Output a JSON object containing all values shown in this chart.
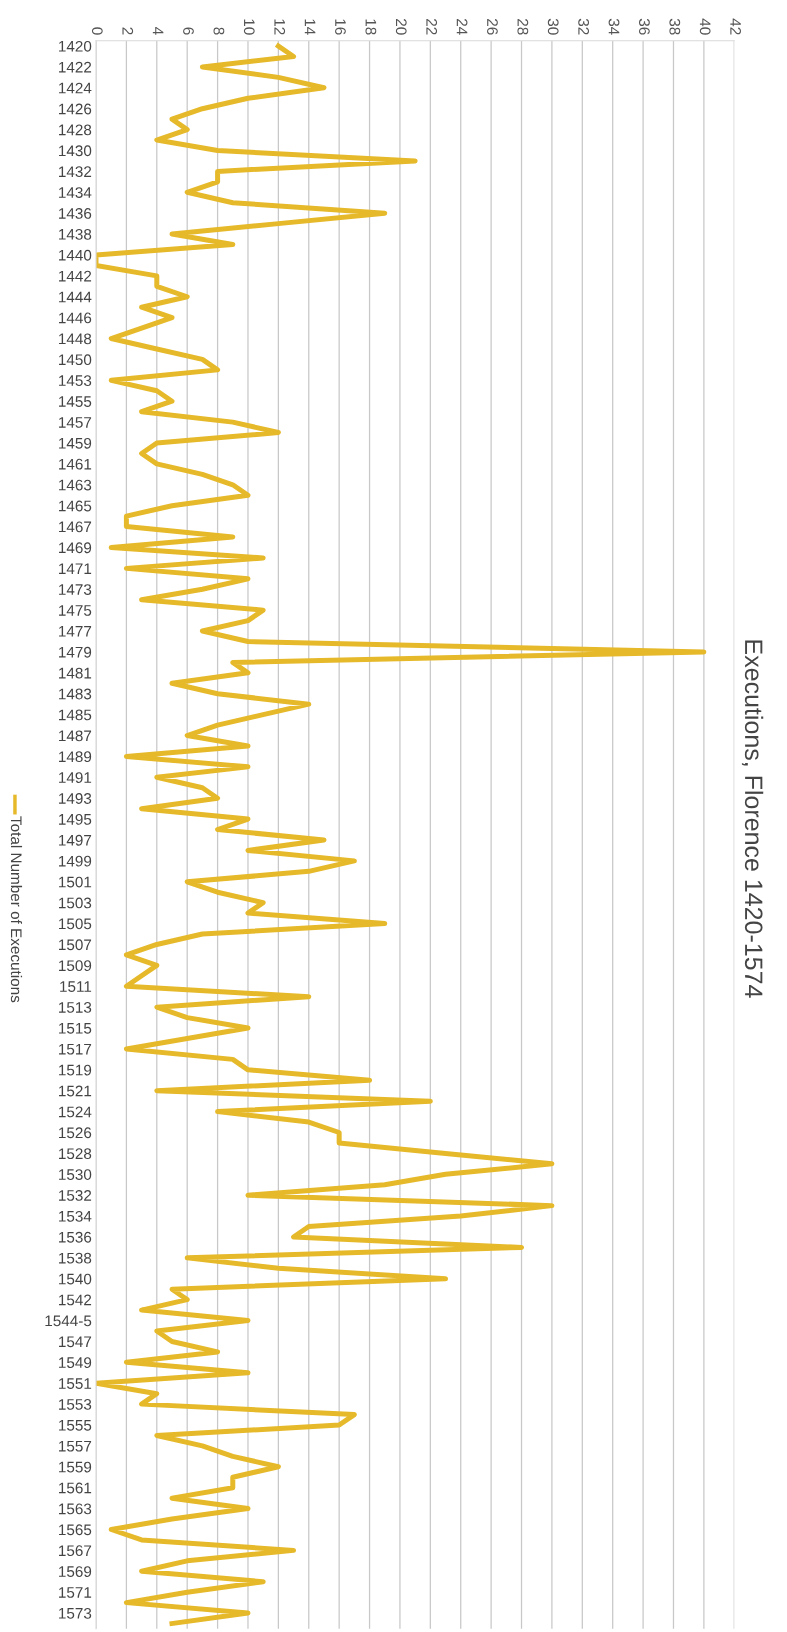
{
  "chart_data": {
    "type": "line",
    "title": "Executions, Florence 1420-1574",
    "categories": [
      "1420",
      null,
      "1422",
      null,
      "1424",
      null,
      "1426",
      null,
      "1428",
      null,
      "1430",
      null,
      "1432",
      null,
      "1434",
      null,
      "1436",
      null,
      "1438",
      null,
      "1440",
      null,
      "1442",
      null,
      "1444",
      null,
      "1446",
      null,
      "1448",
      null,
      "1450",
      null,
      "1453",
      null,
      "1455",
      null,
      "1457",
      null,
      "1459",
      null,
      "1461",
      null,
      "1463",
      null,
      "1465",
      null,
      "1467",
      null,
      "1469",
      null,
      "1471",
      null,
      "1473",
      null,
      "1475",
      null,
      "1477",
      null,
      "1479",
      null,
      "1481",
      null,
      "1483",
      null,
      "1485",
      null,
      "1487",
      null,
      "1489",
      null,
      "1491",
      null,
      "1493",
      null,
      "1495",
      null,
      "1497",
      null,
      "1499",
      null,
      "1501",
      null,
      "1503",
      null,
      "1505",
      null,
      "1507",
      null,
      "1509",
      null,
      "1511",
      null,
      "1513",
      null,
      "1515",
      null,
      "1517",
      null,
      "1519",
      null,
      "1521",
      null,
      "1524",
      null,
      "1526",
      null,
      "1528",
      null,
      "1530",
      null,
      "1532",
      null,
      "1534",
      null,
      "1536",
      null,
      "1538",
      null,
      "1540",
      null,
      "1542",
      null,
      "1544-5",
      null,
      "1547",
      null,
      "1549",
      null,
      "1551",
      null,
      "1553",
      null,
      "1555",
      null,
      "1557",
      null,
      "1559",
      null,
      "1561",
      null,
      "1563",
      null,
      "1565",
      null,
      "1567",
      null,
      "1569",
      null,
      "1571",
      null,
      "1573",
      null
    ],
    "series": [
      {
        "name": "Total Number of Executions",
        "color": "#e6b92a",
        "values": [
          12,
          13,
          7,
          12,
          15,
          10,
          7,
          5,
          6,
          4,
          8,
          21,
          8,
          8,
          6,
          9,
          19,
          12,
          5,
          9,
          0,
          0,
          4,
          4,
          6,
          3,
          5,
          3,
          1,
          4,
          7,
          8,
          1,
          4,
          5,
          3,
          9,
          12,
          4,
          3,
          4,
          7,
          9,
          10,
          5,
          2,
          2,
          9,
          1,
          11,
          2,
          10,
          7,
          3,
          11,
          10,
          7,
          10,
          40,
          9,
          10,
          5,
          8,
          14,
          11,
          8,
          6,
          10,
          2,
          10,
          4,
          7,
          8,
          3,
          10,
          8,
          15,
          10,
          17,
          14,
          6,
          8,
          11,
          10,
          19,
          7,
          4,
          2,
          4,
          3,
          2,
          14,
          4,
          6,
          10,
          6,
          2,
          9,
          10,
          18,
          4,
          22,
          8,
          14,
          16,
          16,
          23,
          30,
          23,
          19,
          10,
          30,
          24,
          14,
          13,
          28,
          6,
          12,
          23,
          5,
          6,
          3,
          10,
          4,
          5,
          8,
          2,
          10,
          0,
          4,
          3,
          17,
          16,
          4,
          7,
          9,
          12,
          9,
          9,
          5,
          10,
          5,
          1,
          3,
          13,
          6,
          3,
          11,
          6,
          2,
          10,
          5
        ]
      }
    ],
    "orientation": "horizontal",
    "xlim": [
      0,
      42
    ],
    "xticks": [
      0,
      2,
      4,
      6,
      8,
      10,
      12,
      14,
      16,
      18,
      20,
      22,
      24,
      26,
      28,
      30,
      32,
      34,
      36,
      38,
      40,
      42
    ],
    "grid": true,
    "legend": "left",
    "marker": "none",
    "line_style": "solid"
  }
}
